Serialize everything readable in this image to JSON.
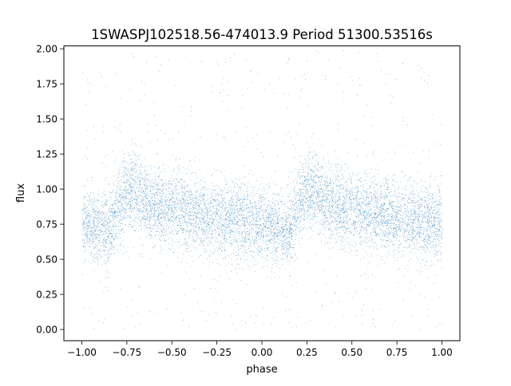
{
  "chart_data": {
    "type": "scatter",
    "title": "1SWASPJ102518.56-474013.9 Period 51300.53516s",
    "xlabel": "phase",
    "ylabel": "flux",
    "xlim": [
      -1.1,
      1.1
    ],
    "ylim": [
      -0.08,
      2.02
    ],
    "x_ticks": [
      -1.0,
      -0.75,
      -0.5,
      -0.25,
      0.0,
      0.25,
      0.5,
      0.75,
      1.0
    ],
    "x_tick_labels": [
      "−1.00",
      "−0.75",
      "−0.50",
      "−0.25",
      "0.00",
      "0.25",
      "0.50",
      "0.75",
      "1.00"
    ],
    "y_ticks": [
      0.0,
      0.25,
      0.5,
      0.75,
      1.0,
      1.25,
      1.5,
      1.75,
      2.0
    ],
    "y_tick_labels": [
      "0.00",
      "0.25",
      "0.50",
      "0.75",
      "1.00",
      "1.25",
      "1.50",
      "1.75",
      "2.00"
    ],
    "grid": false,
    "marker_color": "#1f77b4",
    "series": [
      {
        "phase_range": [
          -1.0,
          1.0
        ],
        "profile_phase": [
          0.0,
          0.05,
          0.1,
          0.15,
          0.2,
          0.25,
          0.3,
          0.35,
          0.4,
          0.45,
          0.5,
          0.55,
          0.6,
          0.65,
          0.7,
          0.75,
          0.8,
          0.85,
          0.9,
          0.95,
          1.0
        ],
        "profile_flux": [
          0.76,
          0.74,
          0.72,
          0.7,
          0.88,
          0.98,
          1.0,
          0.92,
          0.88,
          0.86,
          0.86,
          0.85,
          0.83,
          0.82,
          0.8,
          0.79,
          0.79,
          0.78,
          0.77,
          0.77,
          0.76
        ],
        "flux_range": [
          0.0,
          2.0
        ]
      }
    ]
  }
}
